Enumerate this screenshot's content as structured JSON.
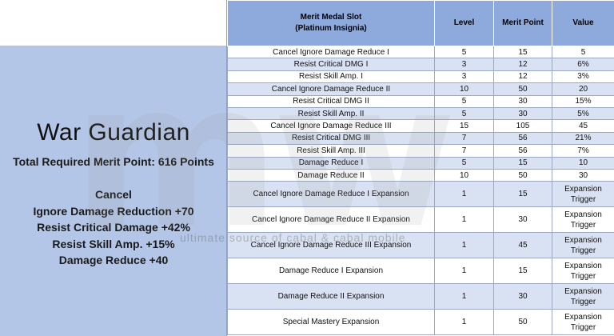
{
  "left": {
    "title": "War Guardian",
    "total": "Total Required Merit Point: 616 Points",
    "effects": [
      "Cancel",
      "Ignore Damage Reduction +70",
      "Resist Critical Damage +42%",
      "Resist Skill Amp. +15%",
      "Damage Reduce +40"
    ]
  },
  "table": {
    "headers": {
      "slot_line1": "Merit Medal Slot",
      "slot_line2": "(Platinum Insignia)",
      "level": "Level",
      "merit_point": "Merit Point",
      "value": "Value"
    },
    "rows": [
      {
        "name": "Cancel Ignore Damage Reduce I",
        "level": "5",
        "mp": "15",
        "value": "5"
      },
      {
        "name": "Resist Critical DMG I",
        "level": "3",
        "mp": "12",
        "value": "6%"
      },
      {
        "name": "Resist Skill Amp. I",
        "level": "3",
        "mp": "12",
        "value": "3%"
      },
      {
        "name": "Cancel Ignore Damage Reduce II",
        "level": "10",
        "mp": "50",
        "value": "20"
      },
      {
        "name": "Resist Critical DMG II",
        "level": "5",
        "mp": "30",
        "value": "15%"
      },
      {
        "name": "Resist Skill Amp. II",
        "level": "5",
        "mp": "30",
        "value": "5%"
      },
      {
        "name": "Cancel Ignore Damage Reduce III",
        "level": "15",
        "mp": "105",
        "value": "45"
      },
      {
        "name": "Resist Critical DMG III",
        "level": "7",
        "mp": "56",
        "value": "21%"
      },
      {
        "name": "Resist Skill Amp. III",
        "level": "7",
        "mp": "56",
        "value": "7%"
      },
      {
        "name": "Damage Reduce I",
        "level": "5",
        "mp": "15",
        "value": "10"
      },
      {
        "name": "Damage Reduce II",
        "level": "10",
        "mp": "50",
        "value": "30"
      },
      {
        "name": "Cancel Ignore Damage Reduce I Expansion",
        "level": "1",
        "mp": "15",
        "value": "Expansion Trigger"
      },
      {
        "name": "Cancel Ignore Damage Reduce II Expansion",
        "level": "1",
        "mp": "30",
        "value": "Expansion Trigger"
      },
      {
        "name": "Cancel Ignore Damage Reduce III Expansion",
        "level": "1",
        "mp": "45",
        "value": "Expansion Trigger"
      },
      {
        "name": "Damage Reduce I Expansion",
        "level": "1",
        "mp": "15",
        "value": "Expansion Trigger"
      },
      {
        "name": "Damage Reduce II Expansion",
        "level": "1",
        "mp": "30",
        "value": "Expansion Trigger"
      },
      {
        "name": "Special Mastery Expansion",
        "level": "1",
        "mp": "50",
        "value": "Expansion Trigger"
      }
    ]
  },
  "watermark": {
    "logo": "mw",
    "tagline": "ultimate source of cabal & cabal mobile"
  }
}
